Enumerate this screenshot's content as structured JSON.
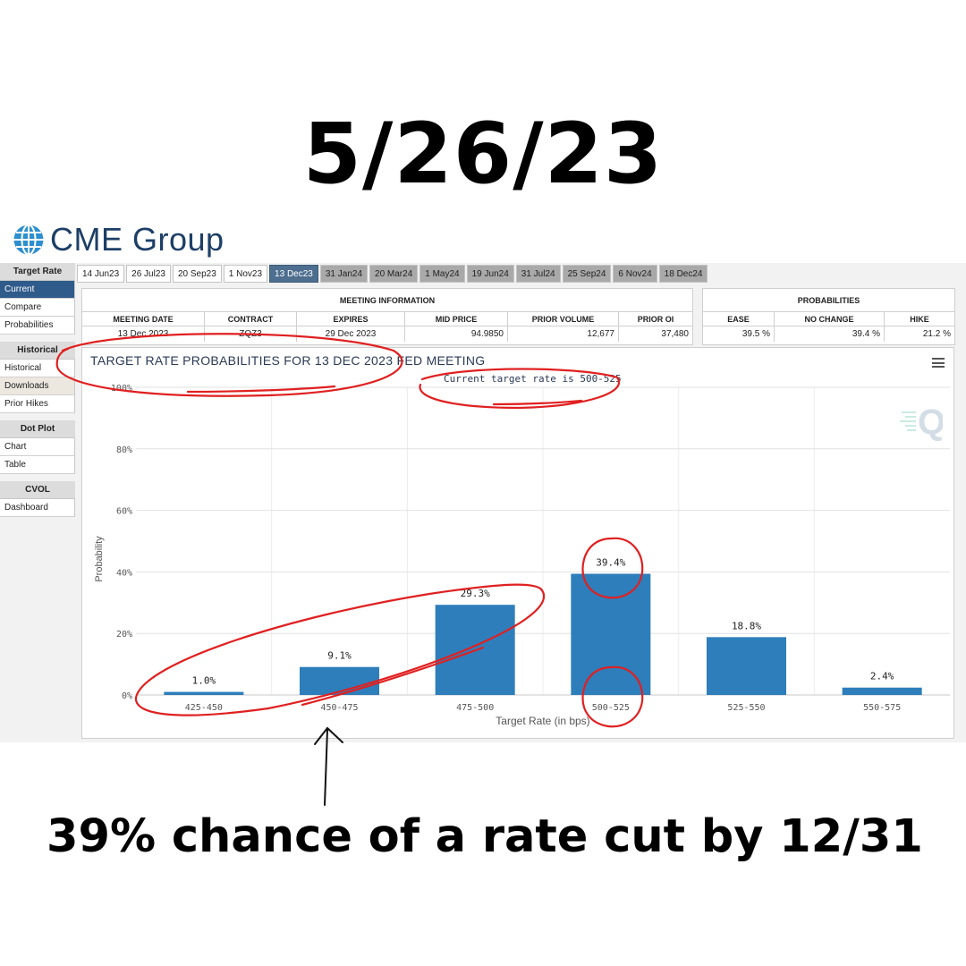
{
  "headline": "5/26/23",
  "caption": "39% chance of a rate cut by 12/31",
  "logo": {
    "name": "CME Group",
    "color": "#1d3f66"
  },
  "sidebar": [
    {
      "heading": "Target Rate",
      "items": [
        {
          "label": "Current",
          "active": true
        },
        {
          "label": "Compare"
        },
        {
          "label": "Probabilities"
        }
      ]
    },
    {
      "heading": "Historical",
      "items": [
        {
          "label": "Historical"
        },
        {
          "label": "Downloads",
          "hover": true
        },
        {
          "label": "Prior Hikes"
        }
      ]
    },
    {
      "heading": "Dot Plot",
      "items": [
        {
          "label": "Chart"
        },
        {
          "label": "Table"
        }
      ]
    },
    {
      "heading": "CVOL",
      "items": [
        {
          "label": "Dashboard"
        }
      ]
    }
  ],
  "tabs": [
    {
      "label": "14 Jun23",
      "state": "past"
    },
    {
      "label": "26 Jul23",
      "state": "past"
    },
    {
      "label": "20 Sep23",
      "state": "past"
    },
    {
      "label": "1 Nov23",
      "state": "past"
    },
    {
      "label": "13 Dec23",
      "state": "active"
    },
    {
      "label": "31 Jan24",
      "state": "future"
    },
    {
      "label": "20 Mar24",
      "state": "future"
    },
    {
      "label": "1 May24",
      "state": "future"
    },
    {
      "label": "19 Jun24",
      "state": "future"
    },
    {
      "label": "31 Jul24",
      "state": "future"
    },
    {
      "label": "25 Sep24",
      "state": "future"
    },
    {
      "label": "6 Nov24",
      "state": "future"
    },
    {
      "label": "18 Dec24",
      "state": "future"
    }
  ],
  "meeting_info": {
    "title": "MEETING INFORMATION",
    "headers": [
      "MEETING DATE",
      "CONTRACT",
      "EXPIRES",
      "MID PRICE",
      "PRIOR VOLUME",
      "PRIOR OI"
    ],
    "values": [
      "13 Dec 2023",
      "ZQZ3",
      "29 Dec 2023",
      "94.9850",
      "12,677",
      "37,480"
    ]
  },
  "probabilities": {
    "title": "PROBABILITIES",
    "headers": [
      "EASE",
      "NO CHANGE",
      "HIKE"
    ],
    "values": [
      "39.5 %",
      "39.4 %",
      "21.2 %"
    ]
  },
  "chart_data": {
    "type": "bar",
    "title": "TARGET RATE PROBABILITIES FOR 13 DEC 2023 FED MEETING",
    "subtitle": "Current target rate is 500-525",
    "xlabel": "Target Rate (in bps)",
    "ylabel": "Probability",
    "categories": [
      "425-450",
      "450-475",
      "475-500",
      "500-525",
      "525-550",
      "550-575"
    ],
    "values": [
      1.0,
      9.1,
      29.3,
      39.4,
      18.8,
      2.4
    ],
    "value_labels": [
      "1.0%",
      "9.1%",
      "29.3%",
      "39.4%",
      "18.8%",
      "2.4%"
    ],
    "yticks": [
      "0%",
      "20%",
      "40%",
      "60%",
      "80%",
      "100%"
    ],
    "ylim": [
      0,
      100
    ],
    "bar_color": "#2e7ebb",
    "grid": true
  },
  "annotation_color": "#e02020"
}
